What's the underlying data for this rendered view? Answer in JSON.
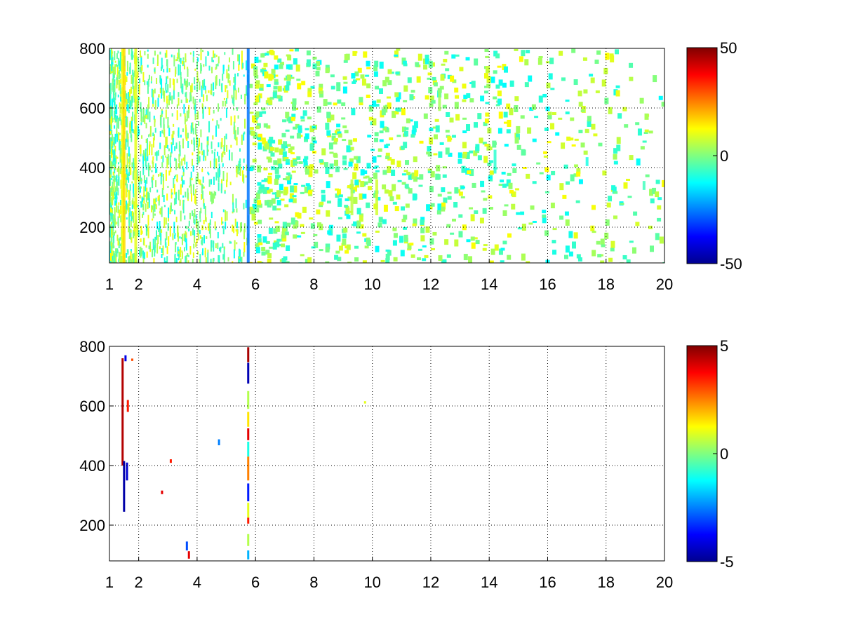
{
  "figure": {
    "background": "#ffffff"
  },
  "chart_data": [
    {
      "type": "heatmap",
      "title": "",
      "xlabel": "",
      "ylabel": "",
      "xlim": [
        1,
        20
      ],
      "ylim": [
        80,
        800
      ],
      "grid": true,
      "x_ticks": [
        1,
        2,
        4,
        6,
        8,
        10,
        12,
        14,
        16,
        18,
        20
      ],
      "x_tick_labels": [
        "1",
        "2",
        "4",
        "6",
        "8",
        "10",
        "12",
        "14",
        "16",
        "18",
        "20"
      ],
      "y_ticks": [
        200,
        400,
        600,
        800
      ],
      "y_tick_labels": [
        "200",
        "400",
        "600",
        "800"
      ],
      "colormap": "jet",
      "clim": [
        -50,
        50
      ],
      "colorbar": {
        "ticks": [
          50,
          0,
          -50
        ],
        "tick_labels": [
          "50",
          "0",
          "-50"
        ]
      },
      "values": [
        {
          "x": 1.45,
          "y": 440,
          "h": 720,
          "v": 12
        },
        {
          "x": 1.5,
          "y": 440,
          "h": 720,
          "v": 16
        },
        {
          "x": 1.9,
          "y": 440,
          "h": 720,
          "v": 10
        },
        {
          "x": 5.75,
          "y": 440,
          "h": 720,
          "v": -26
        },
        {
          "x": 9.3,
          "y": 300,
          "h": 120,
          "v": 6
        },
        {
          "x": 10.15,
          "y": 300,
          "h": 120,
          "v": 8
        },
        {
          "x": 12.3,
          "y": 620,
          "h": 60,
          "v": 4
        },
        {
          "x": 14.2,
          "y": 420,
          "h": 80,
          "v": -8
        },
        {
          "x": 17.35,
          "y": 420,
          "h": 30,
          "v": -10
        },
        {
          "x": 19.3,
          "y": 340,
          "h": 30,
          "v": -6
        }
      ]
    },
    {
      "type": "heatmap",
      "title": "",
      "xlabel": "",
      "ylabel": "",
      "xlim": [
        1,
        20
      ],
      "ylim": [
        80,
        800
      ],
      "grid": true,
      "x_ticks": [
        1,
        2,
        4,
        6,
        8,
        10,
        12,
        14,
        16,
        18,
        20
      ],
      "x_tick_labels": [
        "1",
        "2",
        "4",
        "6",
        "8",
        "10",
        "12",
        "14",
        "16",
        "18",
        "20"
      ],
      "y_ticks": [
        200,
        400,
        600,
        800
      ],
      "y_tick_labels": [
        "200",
        "400",
        "600",
        "800"
      ],
      "colormap": "jet",
      "clim": [
        -5,
        5
      ],
      "colorbar": {
        "ticks": [
          5,
          0,
          -5
        ],
        "tick_labels": [
          "5",
          "0",
          "-5"
        ]
      },
      "values": [
        {
          "x": 1.45,
          "y": 580,
          "h": 360,
          "v": 4.5
        },
        {
          "x": 1.5,
          "y": 330,
          "h": 170,
          "v": -4.6
        },
        {
          "x": 1.55,
          "y": 760,
          "h": 20,
          "v": -4.0
        },
        {
          "x": 1.6,
          "y": 380,
          "h": 60,
          "v": -4.2
        },
        {
          "x": 1.63,
          "y": 600,
          "h": 40,
          "v": 3.5
        },
        {
          "x": 1.78,
          "y": 755,
          "h": 8,
          "v": 3.0
        },
        {
          "x": 2.8,
          "y": 310,
          "h": 12,
          "v": 4.0
        },
        {
          "x": 3.1,
          "y": 415,
          "h": 12,
          "v": 3.5
        },
        {
          "x": 3.65,
          "y": 130,
          "h": 30,
          "v": -3.0
        },
        {
          "x": 3.72,
          "y": 100,
          "h": 25,
          "v": 4.0
        },
        {
          "x": 4.75,
          "y": 478,
          "h": 20,
          "v": -2.5
        },
        {
          "x": 5.75,
          "y": 772,
          "h": 50,
          "v": 4.6
        },
        {
          "x": 5.75,
          "y": 710,
          "h": 70,
          "v": -4.5
        },
        {
          "x": 5.75,
          "y": 620,
          "h": 60,
          "v": 0.5
        },
        {
          "x": 5.75,
          "y": 555,
          "h": 50,
          "v": 1.5
        },
        {
          "x": 5.75,
          "y": 505,
          "h": 40,
          "v": 4.0
        },
        {
          "x": 5.75,
          "y": 455,
          "h": 50,
          "v": -1.0
        },
        {
          "x": 5.75,
          "y": 390,
          "h": 80,
          "v": 2.5
        },
        {
          "x": 5.75,
          "y": 310,
          "h": 60,
          "v": -3.5
        },
        {
          "x": 5.75,
          "y": 250,
          "h": 50,
          "v": 1.0
        },
        {
          "x": 5.75,
          "y": 215,
          "h": 20,
          "v": 3.5
        },
        {
          "x": 5.75,
          "y": 150,
          "h": 40,
          "v": 0.5
        },
        {
          "x": 5.75,
          "y": 100,
          "h": 30,
          "v": -2.0
        },
        {
          "x": 9.75,
          "y": 612,
          "h": 8,
          "v": 1.0
        }
      ]
    }
  ]
}
